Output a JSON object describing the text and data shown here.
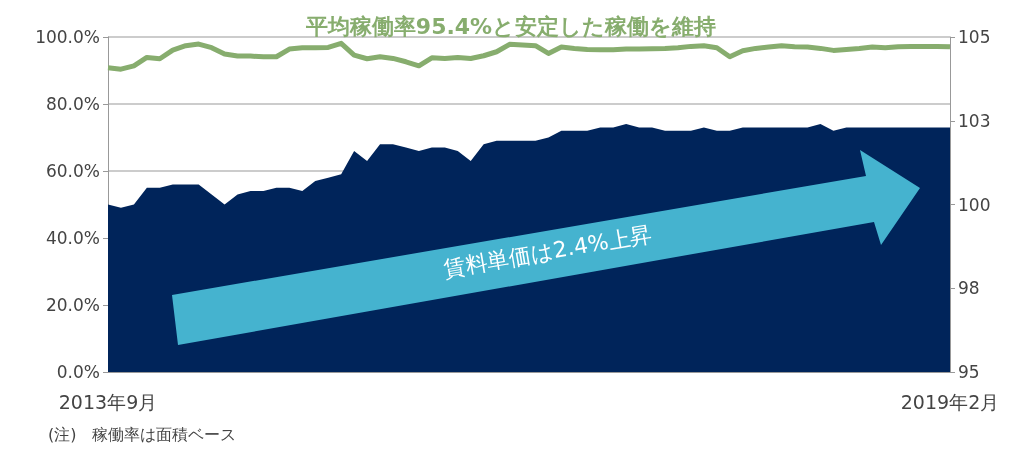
{
  "chart_data": {
    "type": "line",
    "title": "平均稼働率95.4%と安定した稼働を維持",
    "categories": [
      "2013年9月",
      null,
      null,
      null,
      null,
      null,
      null,
      null,
      null,
      null,
      null,
      null,
      null,
      null,
      null,
      null,
      null,
      null,
      null,
      null,
      null,
      null,
      null,
      null,
      null,
      null,
      null,
      null,
      null,
      null,
      null,
      null,
      null,
      null,
      null,
      null,
      null,
      null,
      null,
      null,
      null,
      null,
      null,
      null,
      null,
      null,
      null,
      null,
      null,
      null,
      null,
      null,
      null,
      null,
      null,
      null,
      null,
      null,
      null,
      null,
      null,
      null,
      null,
      null,
      null,
      "2019年2月"
    ],
    "series": [
      {
        "type": "area",
        "axis": "y2",
        "color": "#00245a",
        "values": [
          100.0,
          99.9,
          100.0,
          100.5,
          100.5,
          100.6,
          100.6,
          100.6,
          100.3,
          100.0,
          100.3,
          100.4,
          100.4,
          100.5,
          100.5,
          100.4,
          100.7,
          100.8,
          100.9,
          101.6,
          101.3,
          101.8,
          101.8,
          101.7,
          101.6,
          101.7,
          101.7,
          101.6,
          101.3,
          101.8,
          101.9,
          101.9,
          101.9,
          101.9,
          102.0,
          102.2,
          102.2,
          102.2,
          102.3,
          102.3,
          102.4,
          102.3,
          102.3,
          102.2,
          102.2,
          102.2,
          102.3,
          102.2,
          102.2,
          102.3,
          102.3,
          102.3,
          102.3,
          102.3,
          102.3,
          102.4,
          102.2,
          102.3,
          102.3,
          102.3,
          102.3,
          102.3,
          102.3,
          102.3,
          102.3,
          102.3
        ]
      },
      {
        "type": "line",
        "color": "#87ad6e",
        "values": [
          90.8,
          90.4,
          91.4,
          93.9,
          93.5,
          96.1,
          97.4,
          97.9,
          96.8,
          94.9,
          94.3,
          94.3,
          94.1,
          94.1,
          96.4,
          96.8,
          96.8,
          96.9,
          98.1,
          94.6,
          93.5,
          94.1,
          93.6,
          92.6,
          91.4,
          93.8,
          93.6,
          93.9,
          93.6,
          94.4,
          95.6,
          97.8,
          97.6,
          97.4,
          95.1,
          97.0,
          96.6,
          96.3,
          96.2,
          96.2,
          96.4,
          96.4,
          96.5,
          96.6,
          96.8,
          97.2,
          97.4,
          96.8,
          94.1,
          95.9,
          96.6,
          97.0,
          97.4,
          97.1,
          97.0,
          96.6,
          96.0,
          96.3,
          96.6,
          97.0,
          96.8,
          97.1,
          97.2,
          97.2,
          97.2,
          97.1
        ]
      }
    ],
    "ylim": [
      0,
      100
    ],
    "yticks": [
      {
        "value": 0,
        "label": "0.0%"
      },
      {
        "value": 20,
        "label": "20.0%"
      },
      {
        "value": 40,
        "label": "40.0%"
      },
      {
        "value": 60,
        "label": "60.0%"
      },
      {
        "value": 80,
        "label": "80.0%"
      },
      {
        "value": 100,
        "label": "100.0%"
      }
    ],
    "y2lim": [
      95,
      105
    ],
    "y2ticks": [
      95,
      {
        "value": 97.5,
        "label": "98"
      },
      100,
      {
        "value": 102.5,
        "label": "103"
      },
      105
    ],
    "grid": "y",
    "marker": "none",
    "annotations": [
      "賃料単価は2.4%上昇",
      "(注)　稼働率は面積ベース"
    ]
  }
}
